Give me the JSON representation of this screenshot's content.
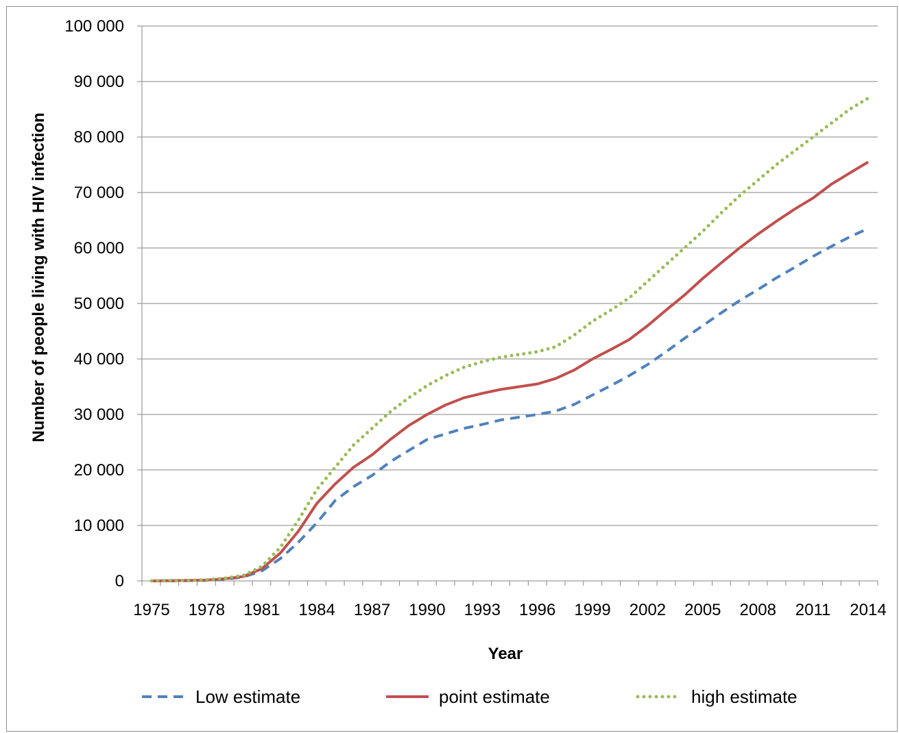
{
  "chart_data": {
    "type": "line",
    "title": "",
    "xlabel": "Year",
    "ylabel": "Number of people living with HIV infection",
    "xlim": [
      1975,
      2014
    ],
    "ylim": [
      0,
      100000
    ],
    "x_ticks": [
      "1975",
      "1978",
      "1981",
      "1984",
      "1987",
      "1990",
      "1993",
      "1996",
      "1999",
      "2002",
      "2005",
      "2008",
      "2011",
      "2014"
    ],
    "y_ticks": [
      "0",
      "10 000",
      "20 000",
      "30 000",
      "40 000",
      "50 000",
      "60 000",
      "70 000",
      "80 000",
      "90 000",
      "100 000"
    ],
    "y_tick_values": [
      0,
      10000,
      20000,
      30000,
      40000,
      50000,
      60000,
      70000,
      80000,
      90000,
      100000
    ],
    "grid": "horizontal",
    "legend_position": "bottom",
    "x": [
      1975,
      1976,
      1977,
      1978,
      1979,
      1980,
      1981,
      1982,
      1983,
      1984,
      1985,
      1986,
      1987,
      1988,
      1989,
      1990,
      1991,
      1992,
      1993,
      1994,
      1995,
      1996,
      1997,
      1998,
      1999,
      2000,
      2001,
      2002,
      2003,
      2004,
      2005,
      2006,
      2007,
      2008,
      2009,
      2010,
      2011,
      2012,
      2013,
      2014
    ],
    "series": [
      {
        "name": "Low estimate",
        "color": "#4f81bd",
        "style": "dashed",
        "values": [
          0,
          0,
          50,
          100,
          300,
          700,
          1800,
          4000,
          7000,
          10500,
          14500,
          17000,
          19000,
          21500,
          23500,
          25500,
          26500,
          27500,
          28200,
          29000,
          29500,
          30000,
          30600,
          31800,
          33500,
          35200,
          37000,
          39000,
          41300,
          43700,
          46000,
          48300,
          50500,
          52500,
          54600,
          56500,
          58500,
          60300,
          62000,
          63500
        ]
      },
      {
        "name": "point estimate",
        "color": "#c0504d",
        "style": "solid",
        "values": [
          0,
          50,
          100,
          150,
          400,
          800,
          2200,
          5000,
          9000,
          14000,
          17500,
          20500,
          22700,
          25500,
          28000,
          30000,
          31700,
          33000,
          33800,
          34500,
          35000,
          35500,
          36500,
          38000,
          40000,
          41700,
          43500,
          46000,
          48800,
          51500,
          54500,
          57300,
          60000,
          62500,
          64800,
          67000,
          69000,
          71500,
          73500,
          75500
        ]
      },
      {
        "name": "high estimate",
        "color": "#9bbb59",
        "style": "dotted",
        "values": [
          0,
          50,
          100,
          200,
          500,
          1000,
          2600,
          6000,
          11000,
          16500,
          20500,
          24500,
          27500,
          30500,
          33000,
          35200,
          37000,
          38500,
          39500,
          40300,
          40800,
          41300,
          42200,
          44300,
          46800,
          48800,
          51000,
          54000,
          57000,
          60000,
          63000,
          66300,
          69400,
          72200,
          75000,
          77500,
          80000,
          82500,
          85000,
          87000
        ]
      }
    ]
  }
}
